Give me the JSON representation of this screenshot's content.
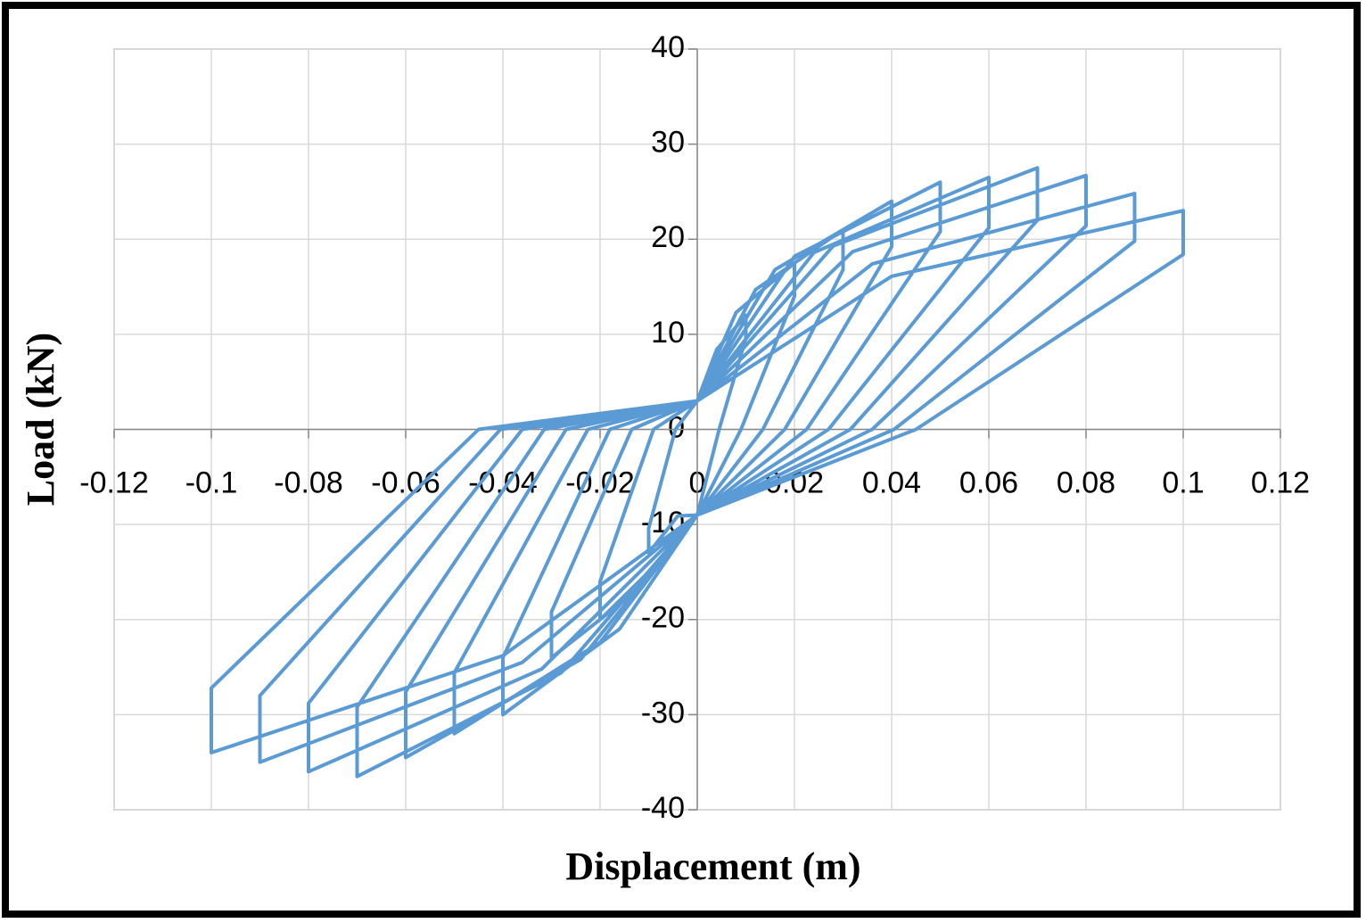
{
  "chart_data": {
    "type": "line",
    "x_label": "Displacement (m)",
    "y_label": "Load (kN)",
    "xlim": [
      -0.12,
      0.12
    ],
    "ylim": [
      -40,
      40
    ],
    "xticks": [
      -0.12,
      -0.1,
      -0.08,
      -0.06,
      -0.04,
      -0.02,
      0,
      0.02,
      0.04,
      0.06,
      0.08,
      0.1,
      0.12
    ],
    "yticks": [
      -40,
      -30,
      -20,
      -10,
      0,
      10,
      20,
      30,
      40
    ],
    "grid": true,
    "series": [
      {
        "color": "#5b9bd5",
        "x": [
          0,
          0.004,
          0.01,
          0.01,
          0.0045,
          0,
          -0.004,
          -0.01,
          -0.01,
          -0.0045,
          0,
          0.008,
          0.02,
          0.02,
          0.009,
          0,
          -0.008,
          -0.02,
          -0.02,
          -0.009,
          0,
          0.012,
          0.03,
          0.03,
          0.0135,
          0,
          -0.012,
          -0.03,
          -0.03,
          -0.0135,
          0,
          0.016,
          0.04,
          0.04,
          0.018,
          0,
          -0.016,
          -0.04,
          -0.04,
          -0.018,
          0,
          0.02,
          0.05,
          0.05,
          0.0225,
          0,
          -0.02,
          -0.05,
          -0.05,
          -0.0225,
          0,
          0.024,
          0.06,
          0.06,
          0.027,
          0,
          -0.024,
          -0.06,
          -0.06,
          -0.027,
          0,
          0.028,
          0.07,
          0.07,
          0.0315,
          0,
          -0.028,
          -0.07,
          -0.07,
          -0.0315,
          0,
          0.032,
          0.08,
          0.08,
          0.036,
          0,
          -0.032,
          -0.08,
          -0.08,
          -0.036,
          0,
          0.036,
          0.09,
          0.09,
          0.0405,
          0,
          -0.036,
          -0.09,
          -0.09,
          -0.0405,
          0,
          0.04,
          0.1,
          0.1,
          0.045,
          0,
          -0.04,
          -0.1,
          -0.1,
          -0.045,
          0
        ],
        "values": [
          3,
          8.4,
          12,
          9.6,
          0,
          -9,
          -9.1,
          -13,
          -10.4,
          0,
          3,
          12.3,
          17.5,
          14,
          0,
          -9,
          -14,
          -20,
          -16,
          0,
          3,
          14.7,
          21,
          16.8,
          0,
          -9,
          -16.8,
          -24,
          -19.2,
          0,
          3,
          16.8,
          24,
          19.2,
          0,
          -9,
          -21,
          -30,
          -24,
          0,
          3,
          18.2,
          26,
          20.8,
          0,
          -9,
          -22.4,
          -32,
          -25.6,
          0,
          3,
          18.6,
          26.5,
          21.2,
          0,
          -9,
          -24.2,
          -34.5,
          -27.6,
          0,
          3,
          19.3,
          27.5,
          22,
          0,
          -9,
          -25.6,
          -36.5,
          -29.2,
          0,
          3,
          18.7,
          26.7,
          21.4,
          0,
          -9,
          -25.2,
          -36,
          -28.8,
          0,
          3,
          17.4,
          24.8,
          19.8,
          0,
          -9,
          -24.5,
          -35,
          -28,
          0,
          3,
          16.1,
          23,
          18.4,
          0,
          -9,
          -23.8,
          -34,
          -27.2,
          0,
          3
        ]
      }
    ]
  }
}
